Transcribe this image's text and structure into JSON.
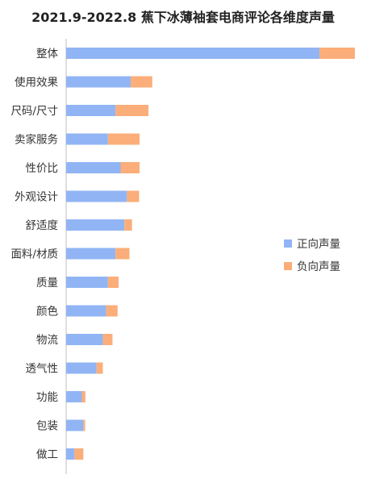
{
  "chart_data": {
    "type": "bar",
    "orientation": "horizontal",
    "stacked": true,
    "title": "2021.9-2022.8 蕉下冰薄袖套电商评论各维度声量",
    "categories": [
      "整体",
      "使用效果",
      "尺码/尺寸",
      "卖家服务",
      "性价比",
      "外观设计",
      "舒适度",
      "面料/材质",
      "质量",
      "颜色",
      "物流",
      "透气性",
      "功能",
      "包装",
      "做工"
    ],
    "series": [
      {
        "name": "正向声量",
        "color": "#91b5f4",
        "values": [
          1000,
          255,
          195,
          165,
          215,
          240,
          230,
          195,
          165,
          158,
          145,
          120,
          62,
          68,
          33
        ]
      },
      {
        "name": "负向声量",
        "color": "#fbae79",
        "values": [
          140,
          85,
          130,
          125,
          75,
          48,
          30,
          55,
          42,
          45,
          38,
          25,
          14,
          7,
          35
        ]
      }
    ],
    "xlim": [
      0,
      1140
    ],
    "grid": false,
    "legend_position": "right"
  }
}
